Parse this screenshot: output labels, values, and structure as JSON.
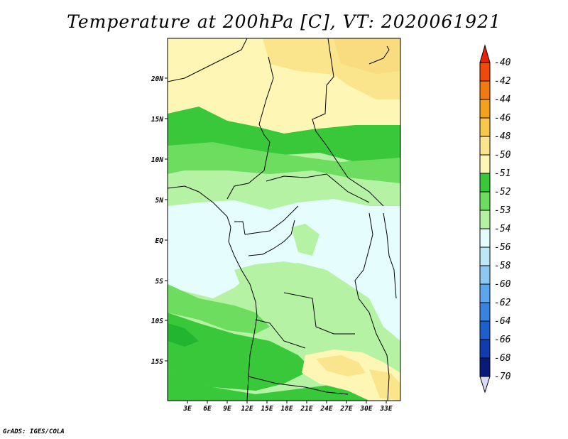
{
  "title": "Temperature at 200hPa [C], VT: 2020061921",
  "credit": "GrADS: IGES/COLA",
  "map": {
    "lat_labels": [
      "20N",
      "15N",
      "10N",
      "5N",
      "EQ",
      "5S",
      "10S",
      "15S"
    ],
    "lon_labels": [
      "3E",
      "6E",
      "9E",
      "12E",
      "15E",
      "18E",
      "21E",
      "24E",
      "27E",
      "30E",
      "33E"
    ]
  },
  "colorbar": {
    "labels": [
      "-40",
      "-42",
      "-44",
      "-46",
      "-48",
      "-50",
      "-51",
      "-52",
      "-53",
      "-54",
      "-56",
      "-58",
      "-60",
      "-62",
      "-64",
      "-66",
      "-68",
      "-70"
    ],
    "colors": [
      "#e8220a",
      "#f04a0a",
      "#f27a10",
      "#f4a21c",
      "#f7c84a",
      "#fbe58c",
      "#fdf6b4",
      "#38c83a",
      "#6cdd5e",
      "#b6f2a4",
      "#e6fdfd",
      "#bde8f8",
      "#8ec8f1",
      "#5ea6ec",
      "#3883e0",
      "#1e5fce",
      "#103cb0",
      "#081a7a",
      "#dcdcf6"
    ]
  }
}
